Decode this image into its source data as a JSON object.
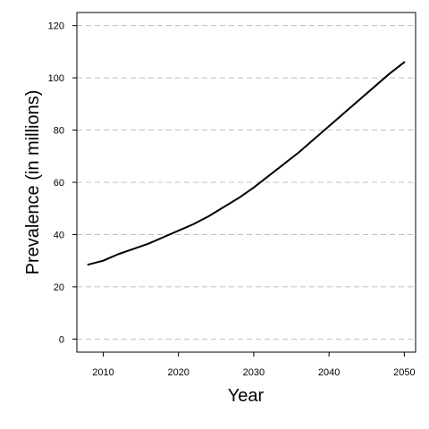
{
  "chart_data": {
    "type": "line",
    "title": "",
    "xlabel": "Year",
    "ylabel": "Prevalence (in millions)",
    "xlim": [
      2006.5,
      2051.5
    ],
    "ylim": [
      -5,
      125
    ],
    "xticks": [
      2010,
      2020,
      2030,
      2040,
      2050
    ],
    "yticks": [
      0,
      20,
      40,
      60,
      80,
      100,
      120
    ],
    "grid": "horizontal dashed",
    "series": [
      {
        "x": [
          2008,
          2010,
          2012,
          2014,
          2016,
          2018,
          2020,
          2022,
          2024,
          2026,
          2028,
          2030,
          2032,
          2034,
          2036,
          2038,
          2040,
          2042,
          2044,
          2046,
          2048,
          2050
        ],
        "y": [
          28.5,
          30.0,
          32.5,
          34.5,
          36.5,
          39.0,
          41.5,
          44.0,
          47.0,
          50.5,
          54.0,
          58.0,
          62.5,
          67.0,
          71.5,
          76.5,
          81.5,
          86.5,
          91.5,
          96.5,
          101.5,
          106.0
        ]
      }
    ],
    "colors": {
      "line": "#000000",
      "grid": "#c0c0c0",
      "frame": "#000000"
    }
  }
}
